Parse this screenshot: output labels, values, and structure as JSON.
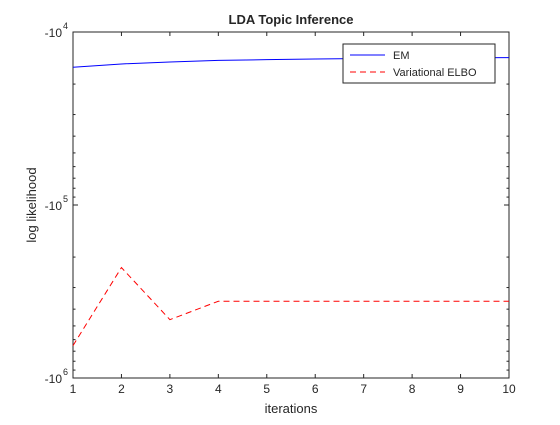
{
  "chart_data": {
    "type": "line",
    "title": "LDA Topic Inference",
    "xlabel": "iterations",
    "ylabel": "log likelihood",
    "x": [
      1,
      2,
      3,
      4,
      5,
      6,
      7,
      8,
      9,
      10
    ],
    "xlim": [
      1,
      10
    ],
    "xticks": [
      "1",
      "2",
      "3",
      "4",
      "5",
      "6",
      "7",
      "8",
      "9",
      "10"
    ],
    "y_scale": "log",
    "y_sign": "negative",
    "ylim": [
      -1000000,
      -10000
    ],
    "yticks": [
      {
        "base": "-10",
        "exp": "4",
        "value": -10000
      },
      {
        "base": "-10",
        "exp": "5",
        "value": -100000
      },
      {
        "base": "-10",
        "exp": "6",
        "value": -1000000
      }
    ],
    "grid": false,
    "legend_position": "top-right",
    "series": [
      {
        "name": "EM",
        "color": "#0000ff",
        "style": "solid",
        "values": [
          -16000,
          -15300,
          -14900,
          -14600,
          -14450,
          -14320,
          -14230,
          -14160,
          -14100,
          -14060
        ]
      },
      {
        "name": "Variational ELBO",
        "color": "#ff0000",
        "style": "dashed",
        "values": [
          -650000,
          -230000,
          -460000,
          -360000,
          -360000,
          -360000,
          -360000,
          -360000,
          -360000,
          -360000
        ]
      }
    ]
  }
}
